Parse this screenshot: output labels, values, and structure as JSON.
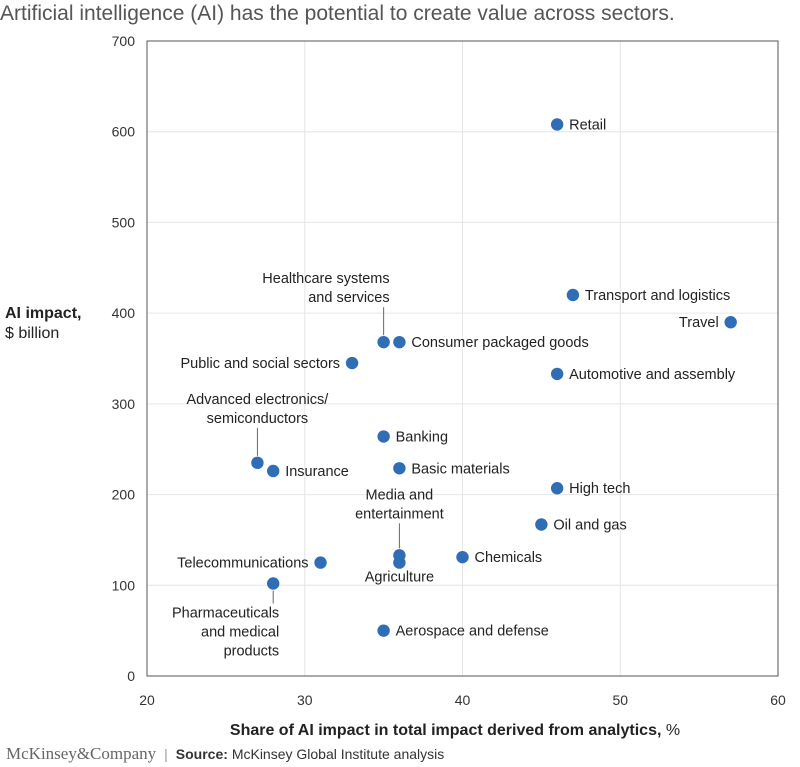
{
  "header": {
    "title": "Artificial intelligence (AI) has the potential to create value across sectors."
  },
  "footer": {
    "brand": "McKinsey&Company",
    "separator": "|",
    "source_label": "Source:",
    "source_text": "McKinsey Global Institute analysis"
  },
  "chart_data": {
    "type": "scatter",
    "title": "Artificial intelligence (AI) has the potential to create value across sectors.",
    "xlabel": "Share of AI impact in total impact derived from analytics,",
    "xlabel_unit": "%",
    "ylabel": "AI impact,",
    "ylabel_unit": "$ billion",
    "xlim": [
      20,
      60
    ],
    "ylim": [
      0,
      700
    ],
    "x_ticks": [
      "20",
      "30",
      "40",
      "50",
      "60"
    ],
    "y_ticks": [
      "0",
      "100",
      "200",
      "300",
      "400",
      "500",
      "600",
      "700"
    ],
    "grid": true,
    "point_color": "#2f6db5",
    "points": [
      {
        "label": "Retail",
        "x": 46,
        "y": 608
      },
      {
        "label": "Transport and logistics",
        "x": 47,
        "y": 420
      },
      {
        "label": "Travel",
        "x": 57,
        "y": 390
      },
      {
        "label": "Healthcare systems and services",
        "x": 35,
        "y": 368
      },
      {
        "label": "Consumer packaged goods",
        "x": 36,
        "y": 368
      },
      {
        "label": "Public and social sectors",
        "x": 33,
        "y": 345
      },
      {
        "label": "Automotive and assembly",
        "x": 46,
        "y": 333
      },
      {
        "label": "Banking",
        "x": 35,
        "y": 264
      },
      {
        "label": "Advanced electronics/ semiconductors",
        "x": 27,
        "y": 235
      },
      {
        "label": "Insurance",
        "x": 28,
        "y": 226
      },
      {
        "label": "Basic materials",
        "x": 36,
        "y": 229
      },
      {
        "label": "High tech",
        "x": 46,
        "y": 207
      },
      {
        "label": "Oil and gas",
        "x": 45,
        "y": 167
      },
      {
        "label": "Media and entertainment",
        "x": 36,
        "y": 133
      },
      {
        "label": "Agriculture",
        "x": 36,
        "y": 125
      },
      {
        "label": "Chemicals",
        "x": 40,
        "y": 131
      },
      {
        "label": "Telecommunications",
        "x": 31,
        "y": 125
      },
      {
        "label": "Pharmaceuticals and medical products",
        "x": 28,
        "y": 102
      },
      {
        "label": "Aerospace and defense",
        "x": 35,
        "y": 50
      }
    ]
  }
}
